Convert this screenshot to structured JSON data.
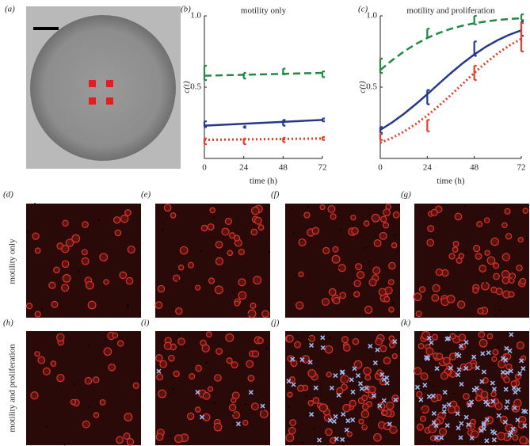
{
  "panel_labels": {
    "a": "(a)",
    "b": "(b)",
    "c": "(c)",
    "d": "(d)",
    "e": "(e)",
    "f": "(f)",
    "g": "(g)",
    "h": "(h)",
    "i": "(i)",
    "j": "(j)",
    "k": "(k)"
  },
  "row_labels": [
    "motility only",
    "motility and proliferation"
  ],
  "chart_data": [
    {
      "type": "line",
      "title": "motility only",
      "x_label": "time (h)",
      "y_label": "c(t)",
      "xlim": [
        0,
        72
      ],
      "ylim": [
        0,
        1
      ],
      "xticks": [
        0,
        24,
        48,
        72
      ],
      "yticks": [
        0.5,
        {
          "value": 1,
          "label": "1.0"
        }
      ],
      "series": [
        {
          "color": "#1f8a43",
          "style": "dashed",
          "x": [
            0,
            72
          ],
          "values": [
            0.58,
            0.6
          ]
        },
        {
          "color": "#24398c",
          "style": "solid",
          "x": [
            0,
            72
          ],
          "values": [
            0.23,
            0.27
          ]
        },
        {
          "color": "#e0412a",
          "style": "dotted",
          "x": [
            0,
            72
          ],
          "values": [
            0.13,
            0.14
          ]
        }
      ],
      "data": [
        {
          "color": "#1f8a43",
          "x": [
            0,
            24,
            48,
            72
          ],
          "values": [
            0.6,
            0.58,
            0.61,
            0.59
          ],
          "errors": [
            0.05,
            0.02,
            0.02,
            0.02
          ]
        },
        {
          "color": "#24398c",
          "x": [
            0,
            24,
            48,
            72
          ],
          "values": [
            0.24,
            0.22,
            0.25,
            0.27
          ],
          "errors": [
            0.02,
            0.005,
            0.02,
            0.01
          ]
        },
        {
          "color": "#e0412a",
          "x": [
            0,
            24,
            48,
            72
          ],
          "values": [
            0.12,
            0.12,
            0.13,
            0.14
          ],
          "errors": [
            0.02,
            0.02,
            0.015,
            0.01
          ]
        }
      ]
    },
    {
      "type": "line",
      "title": "motility and proliferation",
      "x_label": "time (h)",
      "y_label": "c(t)",
      "xlim": [
        0,
        72
      ],
      "ylim": [
        0,
        1
      ],
      "xticks": [
        0,
        24,
        48,
        72
      ],
      "yticks": [
        0.5,
        {
          "value": 1,
          "label": "1.0"
        }
      ],
      "series": [
        {
          "color": "#1f8a43",
          "style": "dashed",
          "x": [
            0,
            6,
            12,
            18,
            24,
            30,
            36,
            42,
            48,
            54,
            60,
            66,
            72
          ],
          "values": [
            0.62,
            0.688,
            0.749,
            0.801,
            0.845,
            0.88,
            0.909,
            0.931,
            0.948,
            0.961,
            0.971,
            0.978,
            0.983
          ]
        },
        {
          "color": "#24398c",
          "style": "solid",
          "x": [
            0,
            6,
            12,
            18,
            24,
            30,
            36,
            42,
            48,
            54,
            60,
            66,
            72
          ],
          "values": [
            0.2,
            0.252,
            0.312,
            0.379,
            0.45,
            0.525,
            0.598,
            0.667,
            0.729,
            0.784,
            0.83,
            0.868,
            0.898
          ]
        },
        {
          "color": "#e0412a",
          "style": "dotted",
          "x": [
            0,
            6,
            12,
            18,
            24,
            30,
            36,
            42,
            48,
            54,
            60,
            66,
            72
          ],
          "values": [
            0.11,
            0.144,
            0.187,
            0.24,
            0.301,
            0.37,
            0.444,
            0.522,
            0.6,
            0.672,
            0.737,
            0.793,
            0.839
          ]
        }
      ],
      "data": [
        {
          "color": "#1f8a43",
          "x": [
            0,
            24,
            48,
            72
          ],
          "values": [
            0.65,
            0.88,
            0.97,
            0.99
          ],
          "errors": [
            0.05,
            0.03,
            0.03,
            0.02
          ]
        },
        {
          "color": "#24398c",
          "x": [
            0,
            24,
            48,
            72
          ],
          "values": [
            0.2,
            0.43,
            0.77,
            0.91
          ],
          "errors": [
            0.02,
            0.05,
            0.05,
            0.05
          ]
        },
        {
          "color": "#e0412a",
          "x": [
            0,
            24,
            48,
            72
          ],
          "values": [
            0.15,
            0.23,
            0.6,
            0.85
          ],
          "errors": [
            0.02,
            0.04,
            0.05,
            0.1
          ]
        }
      ]
    }
  ]
}
